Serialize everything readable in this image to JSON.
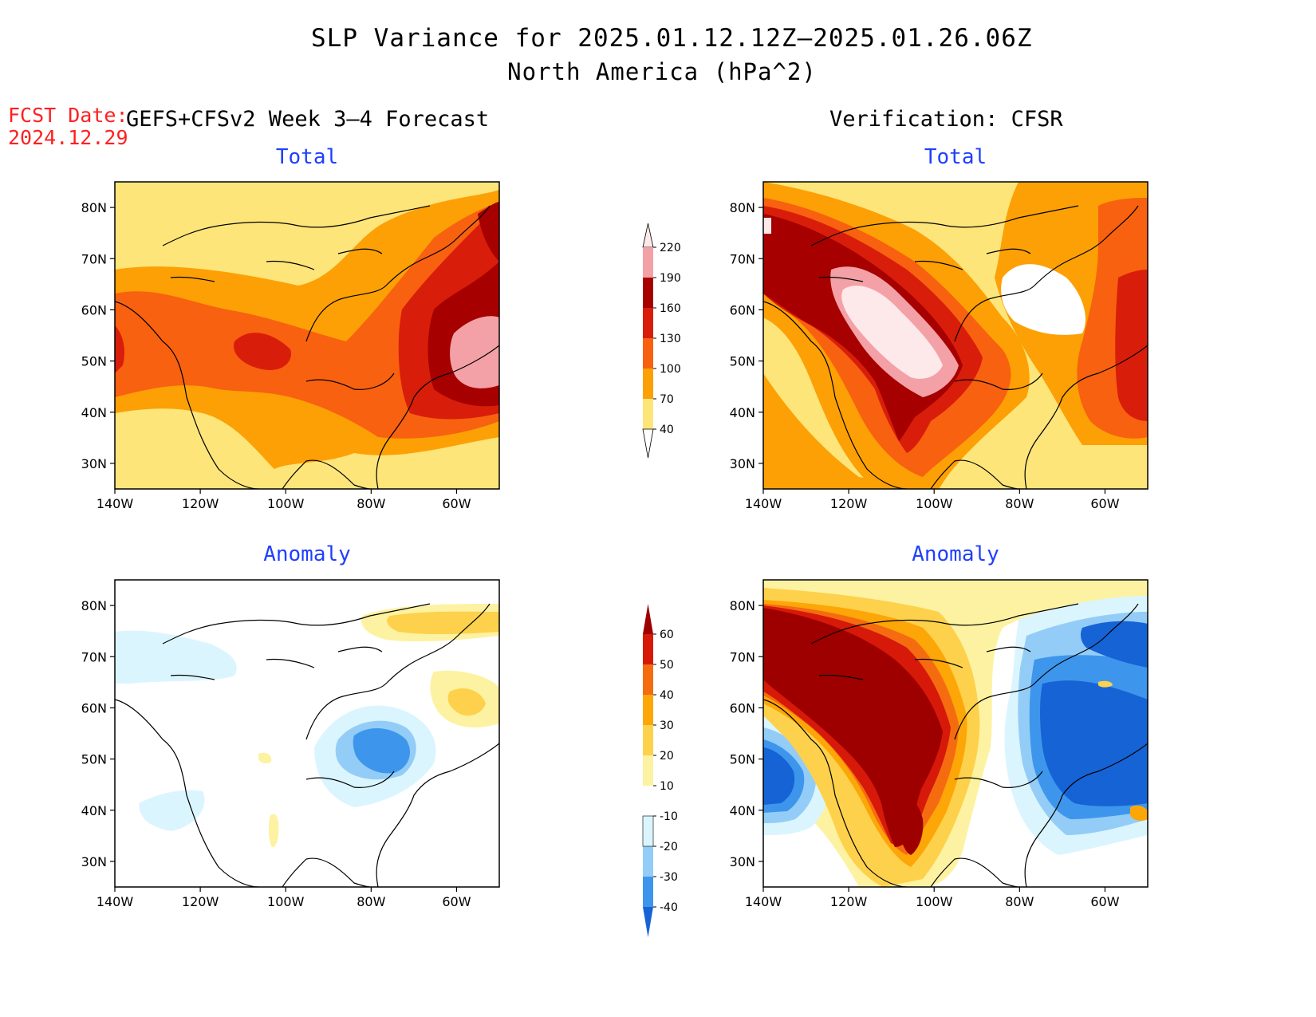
{
  "header": {
    "title": "SLP Variance for 2025.01.12.12Z–2025.01.26.06Z",
    "subtitle": "North America (hPa^2)",
    "fcst_label": "FCST Date:",
    "fcst_date": "2024.12.29",
    "left_heading": "GEFS+CFSv2 Week 3–4 Forecast",
    "right_heading": "Verification: CFSR"
  },
  "panels": [
    {
      "title": "Total",
      "source": "forecast"
    },
    {
      "title": "Total",
      "source": "verification"
    },
    {
      "title": "Anomaly",
      "source": "forecast"
    },
    {
      "title": "Anomaly",
      "source": "verification"
    }
  ],
  "axes": {
    "lon_labels": [
      "140W",
      "120W",
      "100W",
      "80W",
      "60W"
    ],
    "lat_labels": [
      "80N",
      "70N",
      "60N",
      "50N",
      "40N",
      "30N"
    ],
    "lon_range": [
      -140,
      -50
    ],
    "lat_range": [
      25,
      85
    ]
  },
  "colorbars": {
    "total": {
      "labels": [
        "220",
        "190",
        "160",
        "130",
        "100",
        "70",
        "40"
      ],
      "colors": [
        "#fde8ea",
        "#f3a1a6",
        "#a70000",
        "#d81e0a",
        "#f86110",
        "#fca005",
        "#fde57a"
      ]
    },
    "anomaly": {
      "labels": [
        "60",
        "50",
        "40",
        "30",
        "20",
        "10",
        "-10",
        "-20",
        "-30",
        "-40"
      ],
      "colors": [
        "#9e0000",
        "#d61909",
        "#f56c10",
        "#fda607",
        "#fdd14b",
        "#fdf2a1",
        "#ffffff",
        "#dbf5ff",
        "#93cdf7",
        "#3e96ec",
        "#1663d6"
      ]
    }
  },
  "map_colors": {
    "t1": "#fde57a",
    "t2": "#fca005",
    "t3": "#f86110",
    "t4": "#d81e0a",
    "t5": "#a70000",
    "t6": "#f3a1a6",
    "t7": "#fde8ea",
    "a1": "#fdf2a1",
    "a2": "#fdd14b",
    "a3": "#fda607",
    "a4": "#f56c10",
    "a5": "#d61909",
    "a6": "#9e0000",
    "b1": "#dbf5ff",
    "b2": "#93cdf7",
    "b3": "#3e96ec",
    "b4": "#1663d6"
  }
}
